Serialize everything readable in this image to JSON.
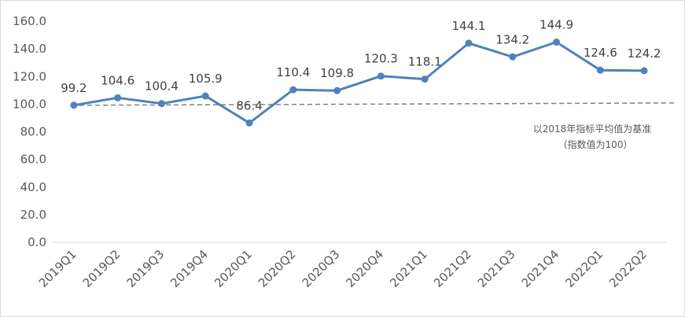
{
  "chart_data": {
    "type": "line",
    "categories": [
      "2019Q1",
      "2019Q2",
      "2019Q3",
      "2019Q4",
      "2020Q1",
      "2020Q2",
      "2020Q3",
      "2020Q4",
      "2021Q1",
      "2021Q2",
      "2021Q3",
      "2021Q4",
      "2022Q1",
      "2022Q2"
    ],
    "series": [
      {
        "values": [
          99.2,
          104.6,
          100.4,
          105.9,
          86.4,
          110.4,
          109.8,
          120.3,
          118.1,
          144.1,
          134.2,
          144.9,
          124.6,
          124.2
        ],
        "color": "#4f81bd"
      }
    ],
    "data_labels": [
      "99.2",
      "104.6",
      "100.4",
      "105.9",
      "86.4",
      "110.4",
      "109.8",
      "120.3",
      "118.1",
      "144.1",
      "134.2",
      "144.9",
      "124.6",
      "124.2"
    ],
    "y_ticks": [
      "0.0",
      "20.0",
      "40.0",
      "60.0",
      "80.0",
      "100.0",
      "120.0",
      "140.0",
      "160.0"
    ],
    "ylim": [
      0,
      160
    ],
    "reference_line": {
      "y": 100,
      "style": "dashed",
      "color": "#808080"
    },
    "annotation": [
      "以2018年指标平均值为基准",
      "（指数值为100）"
    ],
    "grid": false,
    "legend": "none",
    "title": "",
    "xlabel": "",
    "ylabel": ""
  }
}
